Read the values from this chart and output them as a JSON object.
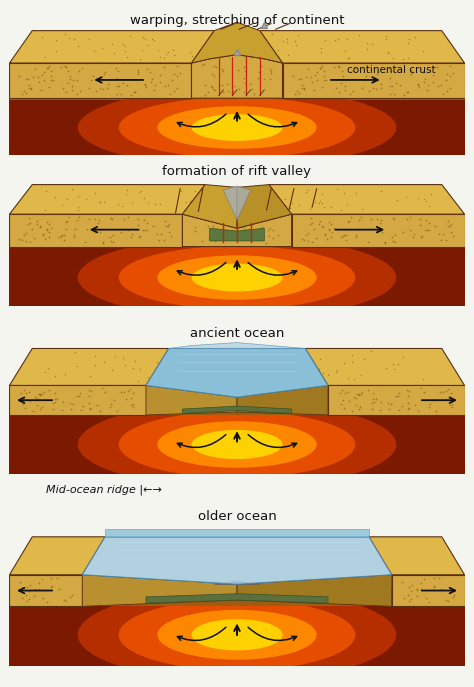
{
  "bg_color": "#f5f5f0",
  "panels": [
    {
      "label": "warping, stretching of continent",
      "sublabel": "continental crust",
      "type": "warping"
    },
    {
      "label": "formation of rift valley",
      "sublabel": "",
      "type": "rift"
    },
    {
      "label": "ancient ocean",
      "sublabel": "",
      "type": "ancient"
    },
    {
      "label": "older ocean",
      "sublabel": "",
      "midocean_label": "Mid-ocean ridge |←→",
      "type": "older"
    }
  ],
  "sand_front": "#D4A843",
  "sand_top": "#C8922A",
  "sand_top_light": "#E0B84A",
  "mantle_dark": "#7B1A00",
  "mantle_base": "#B83000",
  "mantle_mid": "#E85000",
  "mantle_bright": "#FF8C00",
  "mantle_core": "#FFD700",
  "brown_base": "#A05C10",
  "ocean_blue": "#7AB8D4",
  "ocean_blue_light": "#A8CCE0",
  "ocean_blue_dark": "#4A88B0",
  "green_ridge": "#5A7040",
  "dark_outline": "#5A3010",
  "arrow_color": "#111111",
  "red_fissure": "#CC2200"
}
